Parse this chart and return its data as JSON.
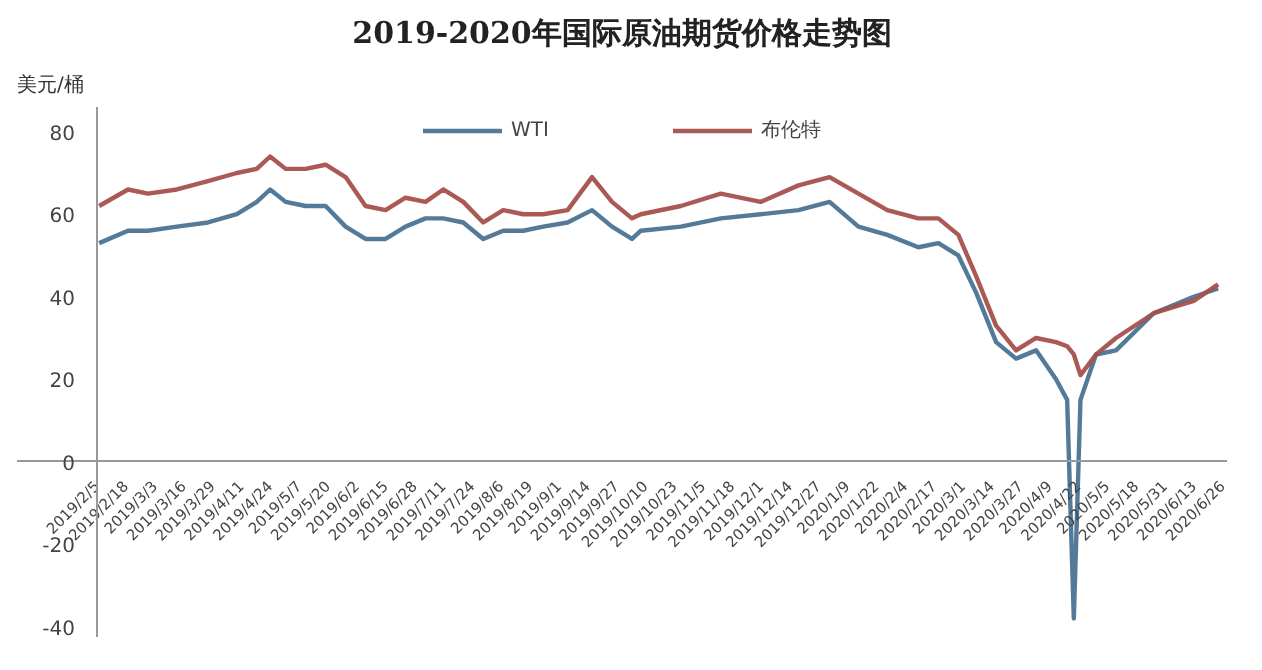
{
  "chart_data": {
    "type": "line",
    "title": "2019-2020年国际原油期货价格走势图",
    "ylabel": "美元/桶",
    "x": [
      "2019-02-06",
      "2019-02-19",
      "2019-02-28",
      "2019-03-13",
      "2019-03-27",
      "2019-04-09",
      "2019-04-18",
      "2019-04-24",
      "2019-05-01",
      "2019-05-10",
      "2019-05-19",
      "2019-05-28",
      "2019-06-06",
      "2019-06-15",
      "2019-06-24",
      "2019-07-03",
      "2019-07-11",
      "2019-07-20",
      "2019-07-29",
      "2019-08-07",
      "2019-08-16",
      "2019-08-25",
      "2019-09-05",
      "2019-09-16",
      "2019-09-25",
      "2019-10-04",
      "2019-10-08",
      "2019-10-26",
      "2019-11-13",
      "2019-12-01",
      "2019-12-18",
      "2020-01-01",
      "2020-01-14",
      "2020-01-27",
      "2020-02-10",
      "2020-02-19",
      "2020-02-28",
      "2020-03-07",
      "2020-03-16",
      "2020-03-25",
      "2020-04-03",
      "2020-04-12",
      "2020-04-17",
      "2020-04-20",
      "2020-04-23",
      "2020-04-30",
      "2020-05-09",
      "2020-05-26",
      "2020-06-13",
      "2020-06-24"
    ],
    "series": [
      {
        "name": "WTI",
        "color": "#4a7494",
        "values": [
          53,
          56,
          56,
          57,
          58,
          60,
          63,
          66,
          63,
          62,
          62,
          57,
          54,
          54,
          57,
          59,
          59,
          58,
          54,
          56,
          56,
          57,
          58,
          61,
          57,
          54,
          56,
          57,
          59,
          60,
          61,
          63,
          57,
          55,
          52,
          53,
          50,
          41,
          29,
          25,
          27,
          20,
          15,
          -38,
          15,
          26,
          27,
          36,
          40,
          42
        ]
      },
      {
        "name": "布伦特",
        "color": "#a5504b",
        "values": [
          62,
          66,
          65,
          66,
          68,
          70,
          71,
          74,
          71,
          71,
          72,
          69,
          62,
          61,
          64,
          63,
          66,
          63,
          58,
          61,
          60,
          60,
          61,
          69,
          63,
          59,
          60,
          62,
          65,
          63,
          67,
          69,
          65,
          61,
          59,
          59,
          55,
          45,
          33,
          27,
          30,
          29,
          28,
          26,
          21,
          26,
          30,
          36,
          39,
          43
        ]
      }
    ],
    "xlim": [
      "2019-02-05",
      "2020-06-28"
    ],
    "xticks": [
      {
        "value": "2019-02-05",
        "label": "2019/2/5"
      },
      {
        "value": "2019-02-18",
        "label": "2019/2/18"
      },
      {
        "value": "2019-03-03",
        "label": "2019/3/3"
      },
      {
        "value": "2019-03-16",
        "label": "2019/3/16"
      },
      {
        "value": "2019-03-29",
        "label": "2019/3/29"
      },
      {
        "value": "2019-04-11",
        "label": "2019/4/11"
      },
      {
        "value": "2019-04-24",
        "label": "2019/4/24"
      },
      {
        "value": "2019-05-07",
        "label": "2019/5/7"
      },
      {
        "value": "2019-05-20",
        "label": "2019/5/20"
      },
      {
        "value": "2019-06-02",
        "label": "2019/6/2"
      },
      {
        "value": "2019-06-15",
        "label": "2019/6/15"
      },
      {
        "value": "2019-06-28",
        "label": "2019/6/28"
      },
      {
        "value": "2019-07-11",
        "label": "2019/7/11"
      },
      {
        "value": "2019-07-24",
        "label": "2019/7/24"
      },
      {
        "value": "2019-08-06",
        "label": "2019/8/6"
      },
      {
        "value": "2019-08-19",
        "label": "2019/8/19"
      },
      {
        "value": "2019-09-01",
        "label": "2019/9/1"
      },
      {
        "value": "2019-09-14",
        "label": "2019/9/14"
      },
      {
        "value": "2019-09-27",
        "label": "2019/9/27"
      },
      {
        "value": "2019-10-10",
        "label": "2019/10/10"
      },
      {
        "value": "2019-10-23",
        "label": "2019/10/23"
      },
      {
        "value": "2019-11-05",
        "label": "2019/11/5"
      },
      {
        "value": "2019-11-18",
        "label": "2019/11/18"
      },
      {
        "value": "2019-12-01",
        "label": "2019/12/1"
      },
      {
        "value": "2019-12-14",
        "label": "2019/12/14"
      },
      {
        "value": "2019-12-27",
        "label": "2019/12/27"
      },
      {
        "value": "2020-01-09",
        "label": "2020/1/9"
      },
      {
        "value": "2020-01-22",
        "label": "2020/1/22"
      },
      {
        "value": "2020-02-04",
        "label": "2020/2/4"
      },
      {
        "value": "2020-02-17",
        "label": "2020/2/17"
      },
      {
        "value": "2020-03-01",
        "label": "2020/3/1"
      },
      {
        "value": "2020-03-14",
        "label": "2020/3/14"
      },
      {
        "value": "2020-03-27",
        "label": "2020/3/27"
      },
      {
        "value": "2020-04-09",
        "label": "2020/4/9"
      },
      {
        "value": "2020-04-22",
        "label": "2020/4/22"
      },
      {
        "value": "2020-05-05",
        "label": "2020/5/5"
      },
      {
        "value": "2020-05-18",
        "label": "2020/5/18"
      },
      {
        "value": "2020-05-31",
        "label": "2020/5/31"
      },
      {
        "value": "2020-06-13",
        "label": "2020/6/13"
      },
      {
        "value": "2020-06-26",
        "label": "2020/6/26"
      }
    ],
    "ylim": [
      -42.5,
      86
    ],
    "yticks": [
      -40,
      -20,
      0,
      20,
      40,
      60,
      80
    ],
    "grid": false,
    "legend": "top",
    "marker": "none",
    "line_style": "solid"
  }
}
